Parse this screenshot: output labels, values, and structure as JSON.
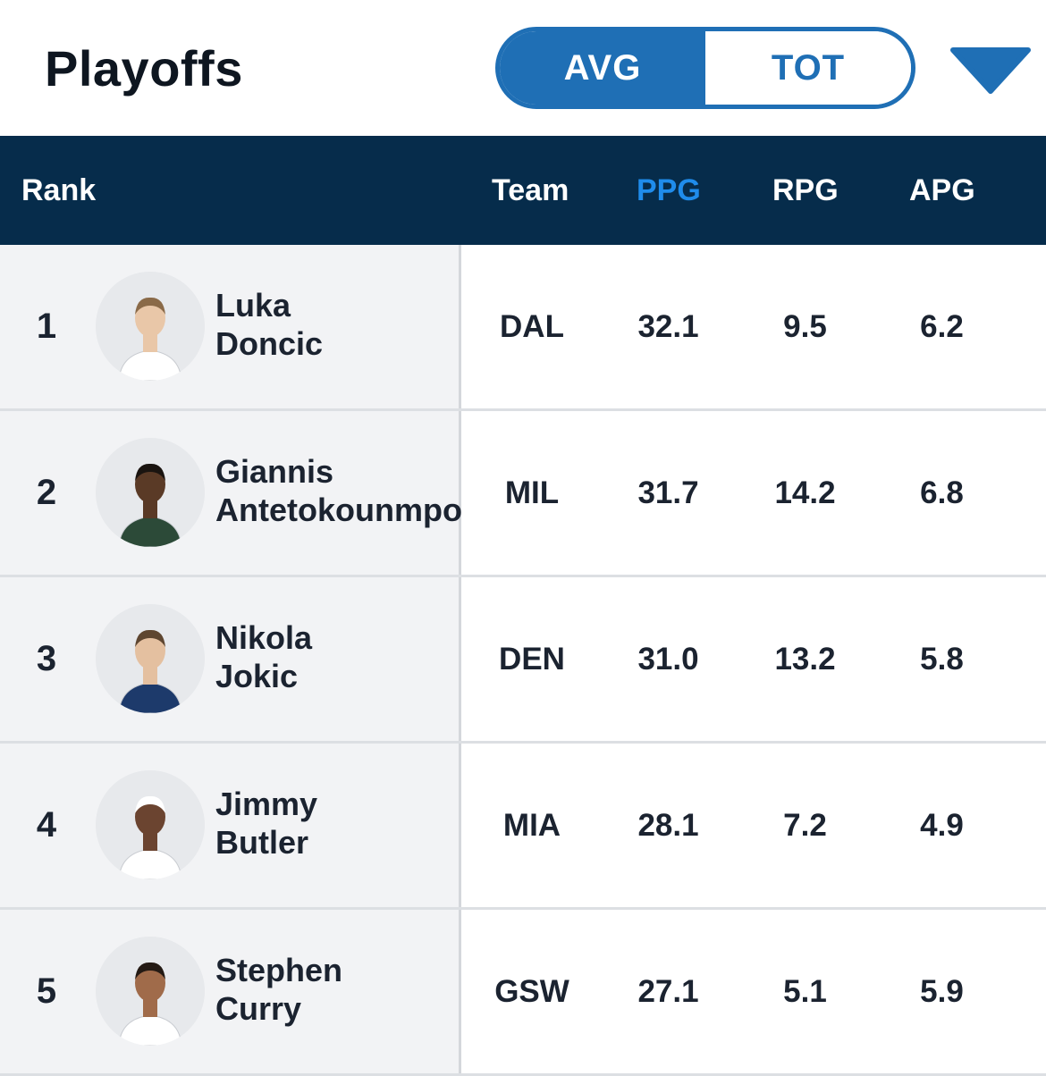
{
  "header": {
    "title": "Playoffs",
    "toggle": {
      "active": "AVG",
      "inactive": "TOT"
    },
    "dropdown_icon": "triangle-down-icon",
    "accent_color": "#1f6fb5"
  },
  "table": {
    "columns": {
      "rank": "Rank",
      "team": "Team",
      "ppg": "PPG",
      "rpg": "RPG",
      "apg": "APG"
    },
    "sorted_by": "PPG",
    "header_bg": "#062c4b",
    "rows": [
      {
        "rank": "1",
        "first": "Luka",
        "last": "Doncic",
        "team": "DAL",
        "ppg": "32.1",
        "rpg": "9.5",
        "apg": "6.2",
        "jersey": "#ffffff",
        "skin": "#e9c7a8",
        "hair": "#8a6a48"
      },
      {
        "rank": "2",
        "first": "Giannis",
        "last": "Antetokounmpo",
        "team": "MIL",
        "ppg": "31.7",
        "rpg": "14.2",
        "apg": "6.8",
        "jersey": "#2c4a38",
        "skin": "#5a3a26",
        "hair": "#1a1410"
      },
      {
        "rank": "3",
        "first": "Nikola",
        "last": "Jokic",
        "team": "DEN",
        "ppg": "31.0",
        "rpg": "13.2",
        "apg": "5.8",
        "jersey": "#1d3a6b",
        "skin": "#e4c0a0",
        "hair": "#5e4630"
      },
      {
        "rank": "4",
        "first": "Jimmy",
        "last": "Butler",
        "team": "MIA",
        "ppg": "28.1",
        "rpg": "7.2",
        "apg": "4.9",
        "jersey": "#ffffff",
        "skin": "#6b4430",
        "hair": "#ffffff"
      },
      {
        "rank": "5",
        "first": "Stephen",
        "last": "Curry",
        "team": "GSW",
        "ppg": "27.1",
        "rpg": "5.1",
        "apg": "5.9",
        "jersey": "#ffffff",
        "skin": "#a06b4a",
        "hair": "#241a14"
      }
    ]
  }
}
